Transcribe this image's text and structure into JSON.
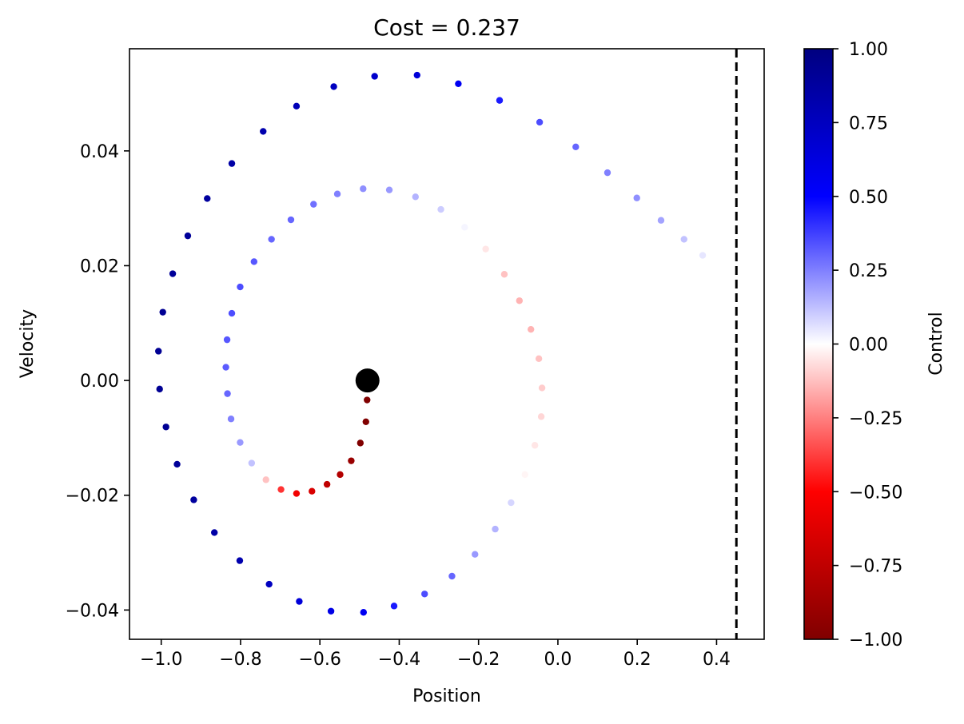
{
  "chart_data": {
    "type": "scatter",
    "title": "Cost = 0.237",
    "xlabel": "Position",
    "ylabel": "Velocity",
    "xlim": [
      -1.08,
      0.52
    ],
    "ylim": [
      -0.0451,
      0.0578
    ],
    "x_ticks": [
      -1.0,
      -0.8,
      -0.6,
      -0.4,
      -0.2,
      0.0,
      0.2,
      0.4
    ],
    "x_tick_labels": [
      "−1.0",
      "−0.8",
      "−0.6",
      "−0.4",
      "−0.2",
      "0.0",
      "0.2",
      "0.4"
    ],
    "y_ticks": [
      -0.04,
      -0.02,
      0.0,
      0.02,
      0.04
    ],
    "y_tick_labels": [
      "−0.04",
      "−0.02",
      "0.00",
      "0.02",
      "0.04"
    ],
    "grid": false,
    "goal_line": {
      "x": 0.45,
      "style": "dashed",
      "color": "#000000"
    },
    "start_point": {
      "x": -0.48,
      "y": 0.0,
      "color": "#000000"
    },
    "colorbar": {
      "label": "Control",
      "colormap": "seismic_r",
      "range": [
        -1.0,
        1.0
      ],
      "ticks": [
        1.0,
        0.75,
        0.5,
        0.25,
        0.0,
        -0.25,
        -0.5,
        -0.75,
        -1.0
      ],
      "tick_labels": [
        "1.00",
        "0.75",
        "0.50",
        "0.25",
        "0.00",
        "−0.25",
        "−0.50",
        "−0.75",
        "−1.00"
      ]
    },
    "points": [
      {
        "x": -0.481,
        "y": -0.0034,
        "c": -1.0
      },
      {
        "x": -0.484,
        "y": -0.0072,
        "c": -1.0
      },
      {
        "x": -0.498,
        "y": -0.0109,
        "c": -1.0
      },
      {
        "x": -0.521,
        "y": -0.014,
        "c": -0.9
      },
      {
        "x": -0.549,
        "y": -0.0164,
        "c": -0.8
      },
      {
        "x": -0.582,
        "y": -0.0181,
        "c": -0.75
      },
      {
        "x": -0.62,
        "y": -0.0193,
        "c": -0.65
      },
      {
        "x": -0.659,
        "y": -0.0197,
        "c": -0.55
      },
      {
        "x": -0.698,
        "y": -0.019,
        "c": -0.4
      },
      {
        "x": -0.736,
        "y": -0.0173,
        "c": -0.12
      },
      {
        "x": -0.772,
        "y": -0.0144,
        "c": 0.12
      },
      {
        "x": -0.801,
        "y": -0.0108,
        "c": 0.2
      },
      {
        "x": -0.824,
        "y": -0.0067,
        "c": 0.25
      },
      {
        "x": -0.833,
        "y": -0.0023,
        "c": 0.3
      },
      {
        "x": -0.837,
        "y": 0.0023,
        "c": 0.32
      },
      {
        "x": -0.834,
        "y": 0.0071,
        "c": 0.33
      },
      {
        "x": -0.822,
        "y": 0.0117,
        "c": 0.35
      },
      {
        "x": -0.801,
        "y": 0.0163,
        "c": 0.35
      },
      {
        "x": -0.766,
        "y": 0.0207,
        "c": 0.33
      },
      {
        "x": -0.722,
        "y": 0.0246,
        "c": 0.3
      },
      {
        "x": -0.673,
        "y": 0.028,
        "c": 0.3
      },
      {
        "x": -0.616,
        "y": 0.0307,
        "c": 0.28
      },
      {
        "x": -0.556,
        "y": 0.0325,
        "c": 0.25
      },
      {
        "x": -0.491,
        "y": 0.0334,
        "c": 0.22
      },
      {
        "x": -0.425,
        "y": 0.0332,
        "c": 0.2
      },
      {
        "x": -0.359,
        "y": 0.032,
        "c": 0.15
      },
      {
        "x": -0.295,
        "y": 0.0298,
        "c": 0.1
      },
      {
        "x": -0.235,
        "y": 0.0267,
        "c": 0.02
      },
      {
        "x": -0.182,
        "y": 0.0229,
        "c": -0.05
      },
      {
        "x": -0.135,
        "y": 0.0185,
        "c": -0.12
      },
      {
        "x": -0.097,
        "y": 0.0139,
        "c": -0.15
      },
      {
        "x": -0.068,
        "y": 0.0089,
        "c": -0.15
      },
      {
        "x": -0.048,
        "y": 0.0038,
        "c": -0.12
      },
      {
        "x": -0.04,
        "y": -0.0013,
        "c": -0.1
      },
      {
        "x": -0.042,
        "y": -0.0063,
        "c": -0.08
      },
      {
        "x": -0.058,
        "y": -0.0113,
        "c": -0.05
      },
      {
        "x": -0.083,
        "y": -0.0164,
        "c": -0.02
      },
      {
        "x": -0.118,
        "y": -0.0213,
        "c": 0.08
      },
      {
        "x": -0.158,
        "y": -0.0259,
        "c": 0.15
      },
      {
        "x": -0.209,
        "y": -0.0303,
        "c": 0.2
      },
      {
        "x": -0.267,
        "y": -0.0341,
        "c": 0.3
      },
      {
        "x": -0.336,
        "y": -0.0372,
        "c": 0.35
      },
      {
        "x": -0.413,
        "y": -0.0393,
        "c": 0.45
      },
      {
        "x": -0.49,
        "y": -0.0404,
        "c": 0.55
      },
      {
        "x": -0.572,
        "y": -0.0402,
        "c": 0.6
      },
      {
        "x": -0.652,
        "y": -0.0385,
        "c": 0.65
      },
      {
        "x": -0.728,
        "y": -0.0355,
        "c": 0.75
      },
      {
        "x": -0.802,
        "y": -0.0314,
        "c": 0.82
      },
      {
        "x": -0.866,
        "y": -0.0265,
        "c": 0.85
      },
      {
        "x": -0.918,
        "y": -0.0208,
        "c": 0.88
      },
      {
        "x": -0.96,
        "y": -0.0146,
        "c": 0.9
      },
      {
        "x": -0.988,
        "y": -0.0081,
        "c": 0.92
      },
      {
        "x": -1.004,
        "y": -0.0015,
        "c": 0.92
      },
      {
        "x": -1.007,
        "y": 0.0051,
        "c": 0.92
      },
      {
        "x": -0.996,
        "y": 0.0119,
        "c": 0.92
      },
      {
        "x": -0.971,
        "y": 0.0186,
        "c": 0.9
      },
      {
        "x": -0.933,
        "y": 0.0252,
        "c": 0.9
      },
      {
        "x": -0.884,
        "y": 0.0317,
        "c": 0.88
      },
      {
        "x": -0.822,
        "y": 0.0378,
        "c": 0.85
      },
      {
        "x": -0.743,
        "y": 0.0434,
        "c": 0.82
      },
      {
        "x": -0.659,
        "y": 0.0478,
        "c": 0.78
      },
      {
        "x": -0.565,
        "y": 0.0512,
        "c": 0.75
      },
      {
        "x": -0.462,
        "y": 0.053,
        "c": 0.7
      },
      {
        "x": -0.355,
        "y": 0.0532,
        "c": 0.65
      },
      {
        "x": -0.251,
        "y": 0.0517,
        "c": 0.55
      },
      {
        "x": -0.147,
        "y": 0.0488,
        "c": 0.45
      },
      {
        "x": -0.046,
        "y": 0.045,
        "c": 0.35
      },
      {
        "x": 0.045,
        "y": 0.0407,
        "c": 0.3
      },
      {
        "x": 0.125,
        "y": 0.0362,
        "c": 0.25
      },
      {
        "x": 0.199,
        "y": 0.0318,
        "c": 0.22
      },
      {
        "x": 0.26,
        "y": 0.0279,
        "c": 0.18
      },
      {
        "x": 0.318,
        "y": 0.0246,
        "c": 0.12
      },
      {
        "x": 0.365,
        "y": 0.0218,
        "c": 0.05
      }
    ]
  }
}
